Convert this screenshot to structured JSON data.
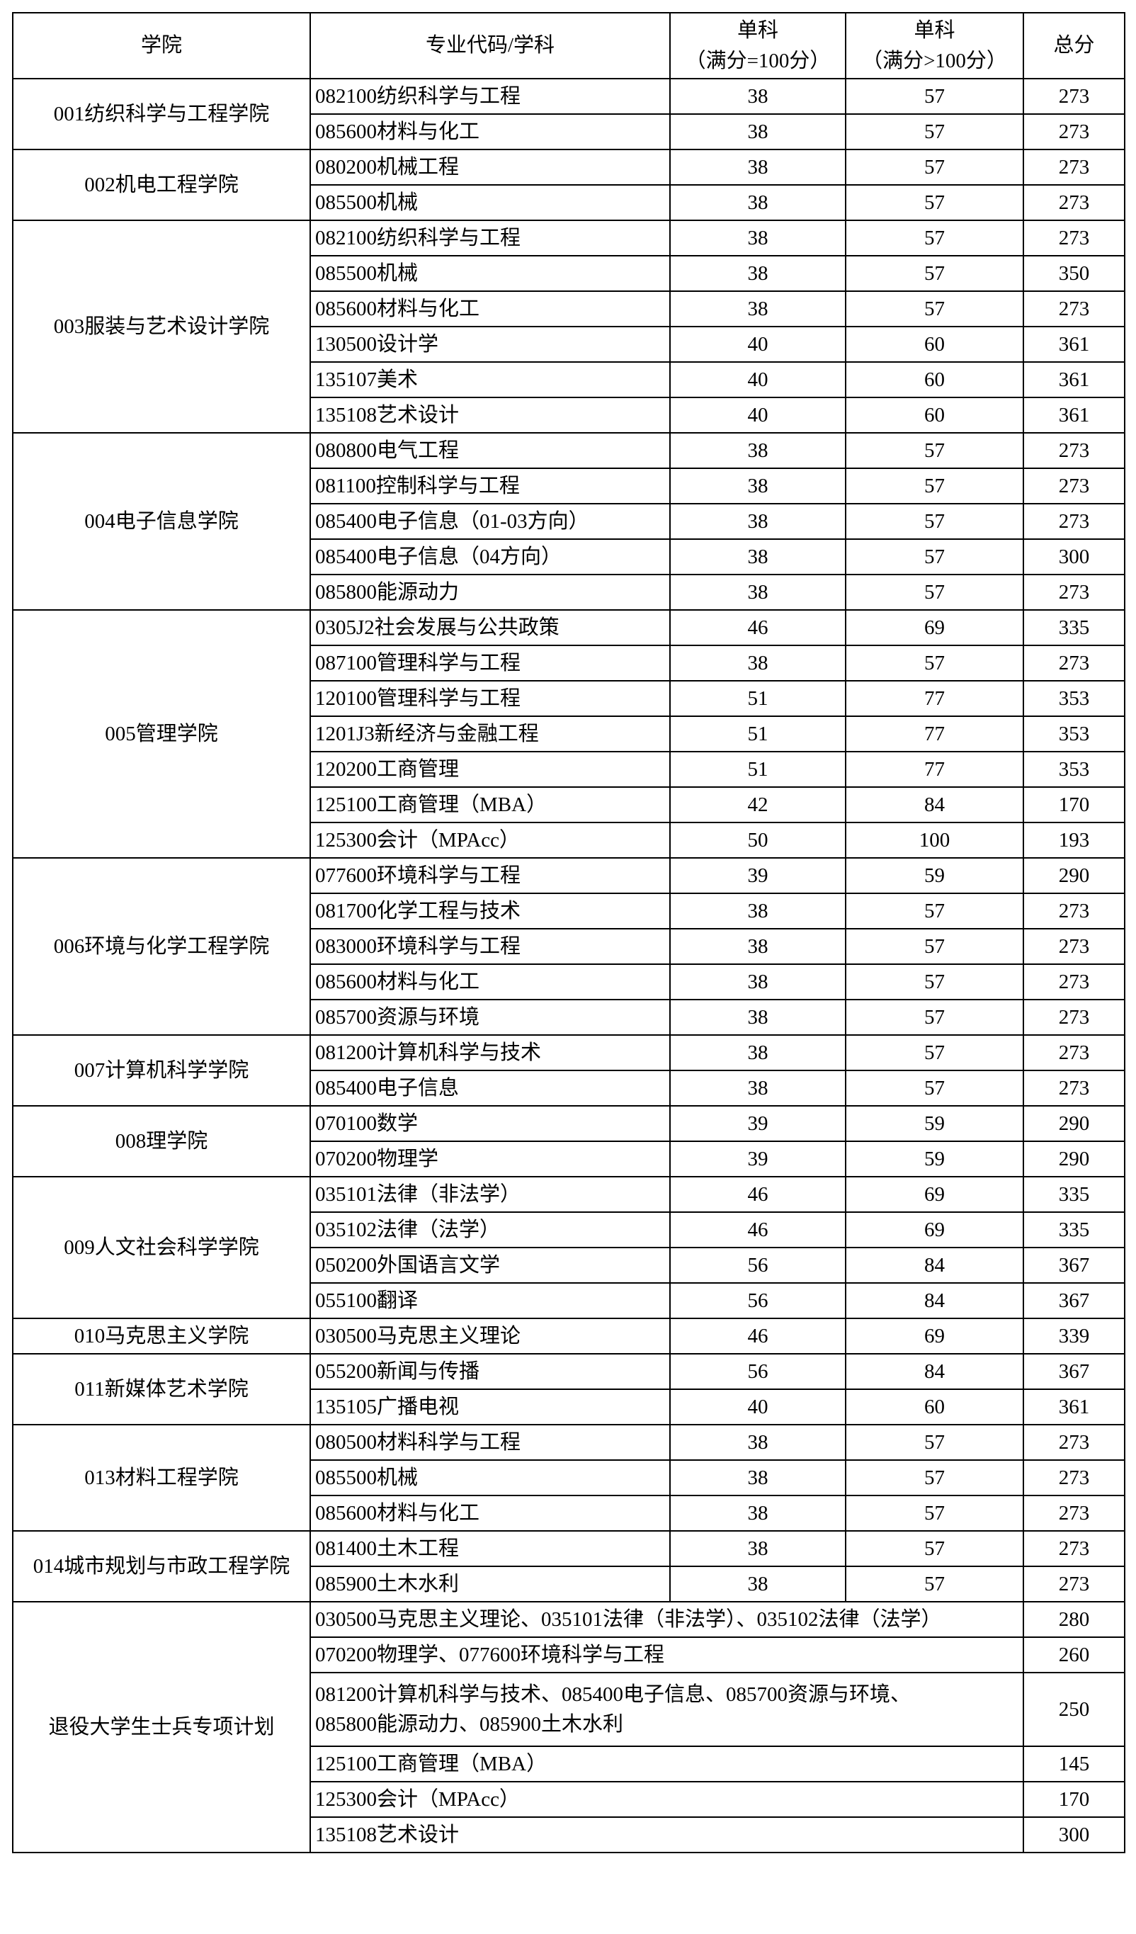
{
  "headers": {
    "college": "学院",
    "major": "专业代码/学科",
    "single100": [
      "单科",
      "（满分=100分）"
    ],
    "single_over100": [
      "单科",
      "（满分>100分）"
    ],
    "total": "总分"
  },
  "groups": [
    {
      "college": "001纺织科学与工程学院",
      "rows": [
        [
          "082100纺织科学与工程",
          "38",
          "57",
          "273"
        ],
        [
          "085600材料与化工",
          "38",
          "57",
          "273"
        ]
      ]
    },
    {
      "college": "002机电工程学院",
      "rows": [
        [
          "080200机械工程",
          "38",
          "57",
          "273"
        ],
        [
          "085500机械",
          "38",
          "57",
          "273"
        ]
      ]
    },
    {
      "college": "003服装与艺术设计学院",
      "rows": [
        [
          "082100纺织科学与工程",
          "38",
          "57",
          "273"
        ],
        [
          "085500机械",
          "38",
          "57",
          "350"
        ],
        [
          "085600材料与化工",
          "38",
          "57",
          "273"
        ],
        [
          "130500设计学",
          "40",
          "60",
          "361"
        ],
        [
          "135107美术",
          "40",
          "60",
          "361"
        ],
        [
          "135108艺术设计",
          "40",
          "60",
          "361"
        ]
      ]
    },
    {
      "college": "004电子信息学院",
      "rows": [
        [
          "080800电气工程",
          "38",
          "57",
          "273"
        ],
        [
          "081100控制科学与工程",
          "38",
          "57",
          "273"
        ],
        [
          "085400电子信息（01-03方向）",
          "38",
          "57",
          "273"
        ],
        [
          "085400电子信息（04方向）",
          "38",
          "57",
          "300"
        ],
        [
          "085800能源动力",
          "38",
          "57",
          "273"
        ]
      ]
    },
    {
      "college": "005管理学院",
      "rows": [
        [
          "0305J2社会发展与公共政策",
          "46",
          "69",
          "335"
        ],
        [
          "087100管理科学与工程",
          "38",
          "57",
          "273"
        ],
        [
          "120100管理科学与工程",
          "51",
          "77",
          "353"
        ],
        [
          "1201J3新经济与金融工程",
          "51",
          "77",
          "353"
        ],
        [
          "120200工商管理",
          "51",
          "77",
          "353"
        ],
        [
          "125100工商管理（MBA）",
          "42",
          "84",
          "170"
        ],
        [
          "125300会计（MPAcc）",
          "50",
          "100",
          "193"
        ]
      ]
    },
    {
      "college": "006环境与化学工程学院",
      "rows": [
        [
          "077600环境科学与工程",
          "39",
          "59",
          "290"
        ],
        [
          "081700化学工程与技术",
          "38",
          "57",
          "273"
        ],
        [
          "083000环境科学与工程",
          "38",
          "57",
          "273"
        ],
        [
          "085600材料与化工",
          "38",
          "57",
          "273"
        ],
        [
          "085700资源与环境",
          "38",
          "57",
          "273"
        ]
      ]
    },
    {
      "college": "007计算机科学学院",
      "rows": [
        [
          "081200计算机科学与技术",
          "38",
          "57",
          "273"
        ],
        [
          "085400电子信息",
          "38",
          "57",
          "273"
        ]
      ]
    },
    {
      "college": "008理学院",
      "rows": [
        [
          "070100数学",
          "39",
          "59",
          "290"
        ],
        [
          "070200物理学",
          "39",
          "59",
          "290"
        ]
      ]
    },
    {
      "college": "009人文社会科学学院",
      "rows": [
        [
          "035101法律（非法学）",
          "46",
          "69",
          "335"
        ],
        [
          "035102法律（法学）",
          "46",
          "69",
          "335"
        ],
        [
          "050200外国语言文学",
          "56",
          "84",
          "367"
        ],
        [
          "055100翻译",
          "56",
          "84",
          "367"
        ]
      ]
    },
    {
      "college": "010马克思主义学院",
      "rows": [
        [
          "030500马克思主义理论",
          "46",
          "69",
          "339"
        ]
      ]
    },
    {
      "college": "011新媒体艺术学院",
      "rows": [
        [
          "055200新闻与传播",
          "56",
          "84",
          "367"
        ],
        [
          "135105广播电视",
          "40",
          "60",
          "361"
        ]
      ]
    },
    {
      "college": "013材料工程学院",
      "rows": [
        [
          "080500材料科学与工程",
          "38",
          "57",
          "273"
        ],
        [
          "085500机械",
          "38",
          "57",
          "273"
        ],
        [
          "085600材料与化工",
          "38",
          "57",
          "273"
        ]
      ]
    },
    {
      "college": "014城市规划与市政工程学院",
      "rows": [
        [
          "081400土木工程",
          "38",
          "57",
          "273"
        ],
        [
          "085900土木水利",
          "38",
          "57",
          "273"
        ]
      ]
    }
  ],
  "veterans": {
    "college": "退役大学生士兵专项计划",
    "rows": [
      [
        "030500马克思主义理论、035101法律（非法学）、035102法律（法学）",
        "280"
      ],
      [
        "070200物理学、077600环境科学与工程",
        "260"
      ],
      [
        "081200计算机科学与技术、085400电子信息、085700资源与环境、\n085800能源动力、085900土木水利",
        "250"
      ],
      [
        "125100工商管理（MBA）",
        "145"
      ],
      [
        "125300会计（MPAcc）",
        "170"
      ],
      [
        "135108艺术设计",
        "300"
      ]
    ]
  }
}
